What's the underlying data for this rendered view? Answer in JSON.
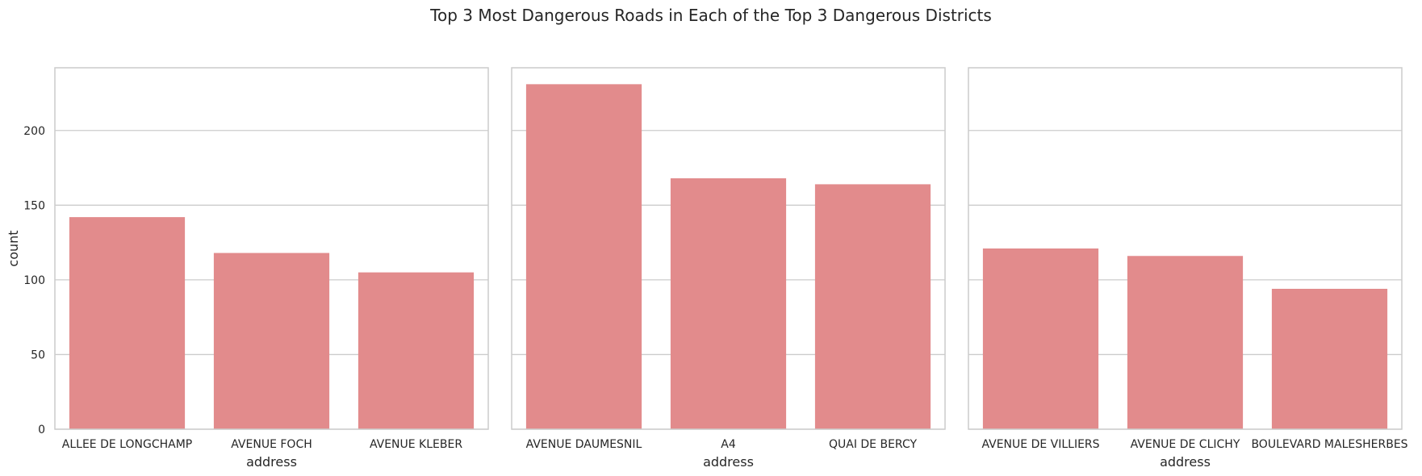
{
  "figure": {
    "title": "Top 3 Most Dangerous Roads in Each of the Top 3 Dangerous Districts"
  },
  "style": {
    "bar_color": "#e28b8c",
    "grid_color": "#cccccc",
    "frame_color": "#cccccc",
    "background": "#ffffff",
    "text_color": "#262626"
  },
  "chart_data": [
    {
      "type": "bar",
      "categories": [
        "ALLEE DE LONGCHAMP",
        "AVENUE FOCH",
        "AVENUE KLEBER"
      ],
      "values": [
        142,
        118,
        105
      ],
      "xlabel": "address",
      "ylabel": "count",
      "ylim": [
        0,
        242
      ],
      "yticks": [
        0,
        50,
        100,
        150,
        200
      ],
      "grid": "y"
    },
    {
      "type": "bar",
      "categories": [
        "AVENUE DAUMESNIL",
        "A4",
        "QUAI DE BERCY"
      ],
      "values": [
        231,
        168,
        164
      ],
      "xlabel": "address",
      "ylabel": "",
      "ylim": [
        0,
        242
      ],
      "yticks": [
        0,
        50,
        100,
        150,
        200
      ],
      "grid": "y"
    },
    {
      "type": "bar",
      "categories": [
        "AVENUE DE VILLIERS",
        "AVENUE DE CLICHY",
        "BOULEVARD MALESHERBES"
      ],
      "values": [
        121,
        116,
        94
      ],
      "xlabel": "address",
      "ylabel": "",
      "ylim": [
        0,
        242
      ],
      "yticks": [
        0,
        50,
        100,
        150,
        200
      ],
      "grid": "y"
    }
  ]
}
